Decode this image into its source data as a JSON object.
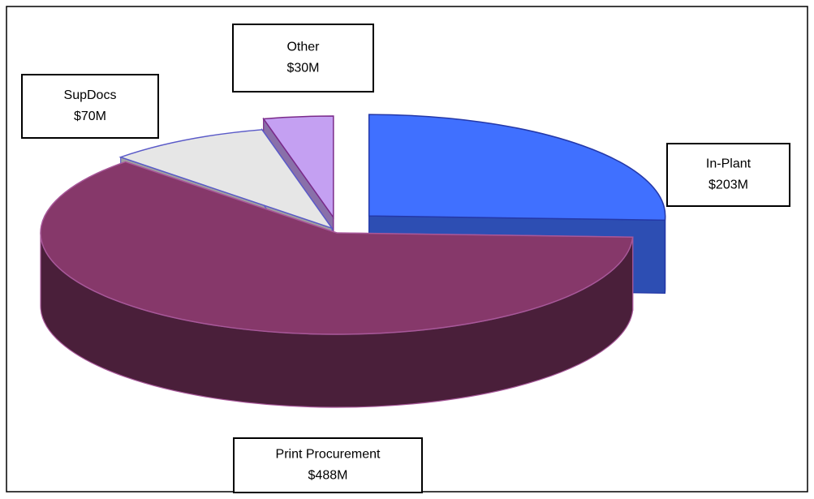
{
  "chart_data": {
    "type": "pie",
    "categories": [
      "In-Plant",
      "Print Procurement",
      "SupDocs",
      "Other"
    ],
    "values": [
      203,
      488,
      70,
      30
    ],
    "value_labels": [
      "$203M",
      "$488M",
      "$70M",
      "$30M"
    ],
    "colors": [
      "#4070ff",
      "#86386a",
      "#e6e6e6",
      "#c4a0f2"
    ]
  }
}
